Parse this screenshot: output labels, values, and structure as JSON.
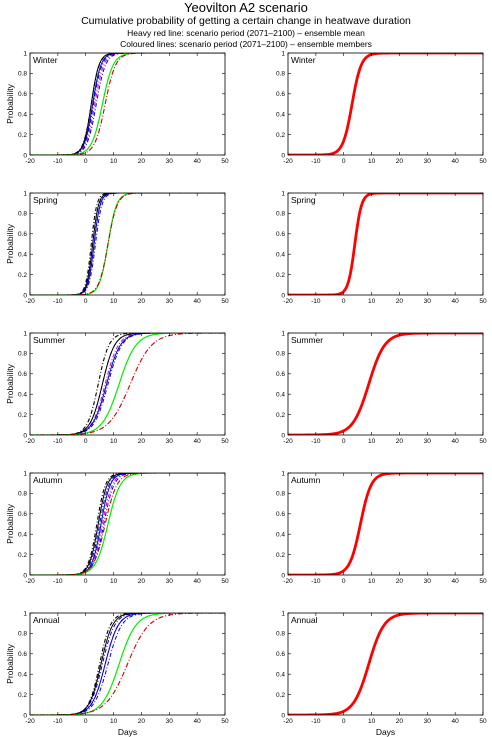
{
  "title": "Yeovilton A2 scenario",
  "subtitle": "Cumulative probability of getting a certain change in heatwave duration",
  "legend_line1": "Heavy red line: scenario period (2071–2100) – ensemble mean",
  "legend_line2": "Coloured lines: scenario period (2071–2100) – ensemble members",
  "colors": {
    "mean": "#ff0000",
    "member_green": "#00ee00",
    "member_red_dashdot": "#cc0000",
    "member_blue": "#0000cc",
    "member_black": "#000000",
    "member_magenta": "#cc00cc"
  },
  "chart_data": {
    "type": "line",
    "xlabel": "Days",
    "ylabel": "Probability",
    "xlim": [
      -20,
      50
    ],
    "ylim": [
      0,
      1
    ],
    "x_ticks": [
      -20,
      -10,
      0,
      10,
      20,
      30,
      40,
      50
    ],
    "y_ticks": [
      0,
      0.2,
      0.4,
      0.6,
      0.8,
      1
    ],
    "panels": [
      {
        "season": "Winter",
        "column": "members",
        "series": [
          {
            "style": "black-dashdot",
            "median": 2,
            "spread": 2.6
          },
          {
            "style": "blue-dashdot",
            "median": 2.8,
            "spread": 2.8
          },
          {
            "style": "magenta-dashdot",
            "median": 3.3,
            "spread": 2.9
          },
          {
            "style": "blue-dashdot",
            "median": 3.8,
            "spread": 3.0
          },
          {
            "style": "blue",
            "median": 2.5,
            "spread": 2.7
          },
          {
            "style": "black",
            "median": 2,
            "spread": 2.5
          },
          {
            "style": "green",
            "median": 6,
            "spread": 3.5
          },
          {
            "style": "red-dashdot",
            "median": 7,
            "spread": 3.4
          }
        ]
      },
      {
        "season": "Winter",
        "column": "mean",
        "series": [
          {
            "style": "mean",
            "median": 3,
            "spread": 3.0
          }
        ]
      },
      {
        "season": "Spring",
        "column": "members",
        "series": [
          {
            "style": "black-dashdot",
            "median": 2,
            "spread": 1.8
          },
          {
            "style": "blue-dashdot",
            "median": 2.5,
            "spread": 2.0
          },
          {
            "style": "magenta-dashdot",
            "median": 3,
            "spread": 2.0
          },
          {
            "style": "blue-dashdot",
            "median": 3.5,
            "spread": 2.1
          },
          {
            "style": "blue",
            "median": 3,
            "spread": 2.0
          },
          {
            "style": "black",
            "median": 2.5,
            "spread": 1.9
          },
          {
            "style": "green",
            "median": 8,
            "spread": 2.8
          },
          {
            "style": "red-dashdot",
            "median": 8,
            "spread": 3.0
          }
        ]
      },
      {
        "season": "Spring",
        "column": "mean",
        "series": [
          {
            "style": "mean",
            "median": 4,
            "spread": 2.2
          }
        ]
      },
      {
        "season": "Summer",
        "column": "members",
        "series": [
          {
            "style": "black-dashdot",
            "median": 4.5,
            "spread": 3.5
          },
          {
            "style": "blue-dashdot",
            "median": 6,
            "spread": 4.0
          },
          {
            "style": "magenta-dashdot",
            "median": 7,
            "spread": 4.3
          },
          {
            "style": "blue-dashdot",
            "median": 8,
            "spread": 4.5
          },
          {
            "style": "blue",
            "median": 7.5,
            "spread": 4.5
          },
          {
            "style": "black",
            "median": 6,
            "spread": 4.0
          },
          {
            "style": "green",
            "median": 12,
            "spread": 5.5
          },
          {
            "style": "red-dashdot",
            "median": 16,
            "spread": 7.0
          }
        ]
      },
      {
        "season": "Summer",
        "column": "mean",
        "series": [
          {
            "style": "mean",
            "median": 9,
            "spread": 5.2
          }
        ]
      },
      {
        "season": "Autumn",
        "column": "members",
        "series": [
          {
            "style": "black-dashdot",
            "median": 4,
            "spread": 2.8
          },
          {
            "style": "blue-dashdot",
            "median": 5,
            "spread": 3.0
          },
          {
            "style": "magenta-dashdot",
            "median": 6,
            "spread": 3.2
          },
          {
            "style": "blue-dashdot",
            "median": 6.5,
            "spread": 3.3
          },
          {
            "style": "blue",
            "median": 5.5,
            "spread": 3.0
          },
          {
            "style": "black",
            "median": 4.5,
            "spread": 2.9
          },
          {
            "style": "green",
            "median": 8,
            "spread": 4.0
          },
          {
            "style": "red-dashdot",
            "median": 7,
            "spread": 3.8
          }
        ]
      },
      {
        "season": "Autumn",
        "column": "mean",
        "series": [
          {
            "style": "mean",
            "median": 6,
            "spread": 3.5
          }
        ]
      },
      {
        "season": "Annual",
        "column": "members",
        "series": [
          {
            "style": "black-dashdot",
            "median": 5,
            "spread": 3.5
          },
          {
            "style": "blue-dashdot",
            "median": 6,
            "spread": 4.0
          },
          {
            "style": "magenta-dashdot",
            "median": 7,
            "spread": 4.2
          },
          {
            "style": "blue-dashdot",
            "median": 8,
            "spread": 4.5
          },
          {
            "style": "blue",
            "median": 7,
            "spread": 4.3
          },
          {
            "style": "black",
            "median": 5.5,
            "spread": 3.8
          },
          {
            "style": "green",
            "median": 12,
            "spread": 5.5
          },
          {
            "style": "red-dashdot",
            "median": 15,
            "spread": 7.0
          }
        ]
      },
      {
        "season": "Annual",
        "column": "mean",
        "series": [
          {
            "style": "mean",
            "median": 9,
            "spread": 5.0
          }
        ]
      }
    ]
  }
}
